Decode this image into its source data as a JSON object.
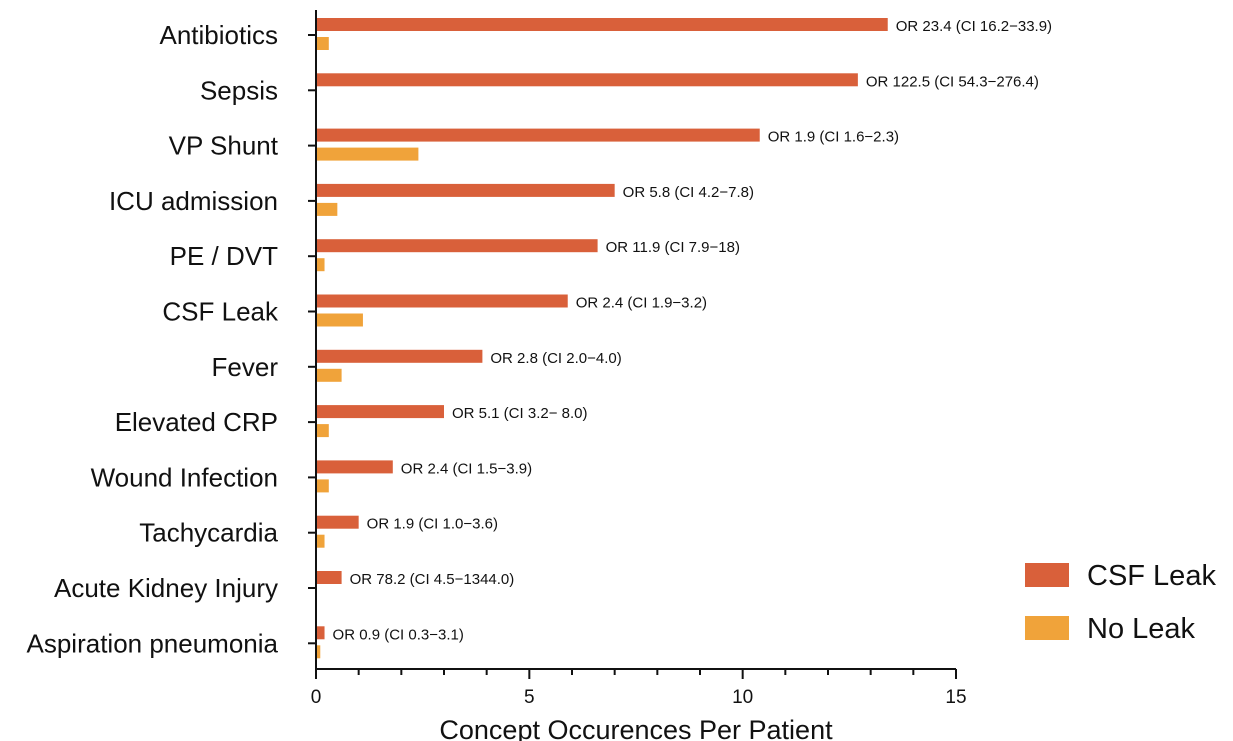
{
  "chart_data": {
    "type": "bar",
    "orientation": "horizontal",
    "categories": [
      "Antibiotics",
      "Sepsis",
      "VP Shunt",
      "ICU admission",
      "PE / DVT",
      "CSF Leak",
      "Fever",
      "Elevated CRP",
      "Wound Infection",
      "Tachycardia",
      "Acute Kidney Injury",
      "Aspiration pneumonia"
    ],
    "series": [
      {
        "name": "CSF Leak",
        "color": "#D9603A",
        "values": [
          13.4,
          12.7,
          10.4,
          7.0,
          6.6,
          5.9,
          3.9,
          3.0,
          1.8,
          1.0,
          0.6,
          0.2
        ]
      },
      {
        "name": "No Leak",
        "color": "#F0A33A",
        "values": [
          0.3,
          0.0,
          2.4,
          0.5,
          0.2,
          1.1,
          0.6,
          0.3,
          0.3,
          0.2,
          0.0,
          0.1
        ]
      }
    ],
    "annotations": [
      "OR 23.4 (CI 16.2−33.9)",
      "OR 122.5 (CI 54.3−276.4)",
      "OR 1.9 (CI 1.6−2.3)",
      "OR 5.8 (CI 4.2−7.8)",
      "OR 11.9 (CI 7.9−18)",
      "OR 2.4 (CI 1.9−3.2)",
      "OR 2.8 (CI 2.0−4.0)",
      "OR 5.1 (CI 3.2− 8.0)",
      "OR 2.4 (CI 1.5−3.9)",
      "OR 1.9 (CI 1.0−3.6)",
      "OR 78.2 (CI 4.5−1344.0)",
      "OR 0.9 (CI 0.3−3.1)"
    ],
    "xlabel": "Concept Occurences Per Patient",
    "xlim": [
      0,
      15
    ],
    "xticks": [
      0,
      5,
      10,
      15
    ],
    "legend_position": "right"
  }
}
